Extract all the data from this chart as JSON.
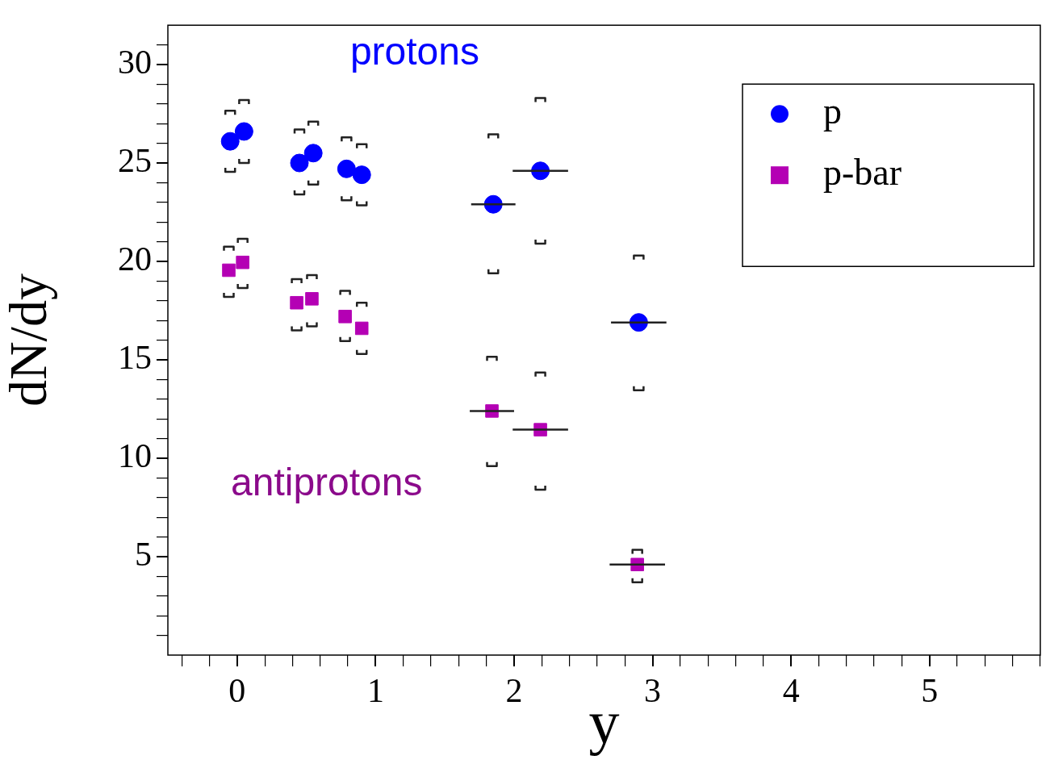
{
  "chart_data": {
    "type": "scatter",
    "xlabel": "y",
    "ylabel": "dN/dy",
    "xlim": [
      -0.5,
      5.8
    ],
    "xticks": [
      {
        "value": -0.4,
        "label": null
      },
      {
        "value": -0.2,
        "label": null
      },
      0,
      {
        "value": 0.2,
        "label": null
      },
      {
        "value": 0.4,
        "label": null
      },
      {
        "value": 0.6,
        "label": null
      },
      {
        "value": 0.8,
        "label": null
      },
      1,
      {
        "value": 1.2,
        "label": null
      },
      {
        "value": 1.4,
        "label": null
      },
      {
        "value": 1.6,
        "label": null
      },
      {
        "value": 1.8,
        "label": null
      },
      2,
      {
        "value": 2.2,
        "label": null
      },
      {
        "value": 2.4,
        "label": null
      },
      {
        "value": 2.6,
        "label": null
      },
      {
        "value": 2.8,
        "label": null
      },
      3,
      {
        "value": 3.2,
        "label": null
      },
      {
        "value": 3.4,
        "label": null
      },
      {
        "value": 3.6,
        "label": null
      },
      {
        "value": 3.8,
        "label": null
      },
      4,
      {
        "value": 4.2,
        "label": null
      },
      {
        "value": 4.4,
        "label": null
      },
      {
        "value": 4.6,
        "label": null
      },
      {
        "value": 4.8,
        "label": null
      },
      5,
      {
        "value": 5.2,
        "label": null
      },
      {
        "value": 5.4,
        "label": null
      },
      {
        "value": 5.6,
        "label": null
      },
      {
        "value": 5.8,
        "label": null
      }
    ],
    "ylim": [
      0,
      32
    ],
    "yticks": [
      {
        "value": 1,
        "label": null
      },
      {
        "value": 2,
        "label": null
      },
      {
        "value": 3,
        "label": null
      },
      {
        "value": 4,
        "label": null
      },
      5,
      {
        "value": 6,
        "label": null
      },
      {
        "value": 7,
        "label": null
      },
      {
        "value": 8,
        "label": null
      },
      {
        "value": 9,
        "label": null
      },
      10,
      {
        "value": 11,
        "label": null
      },
      {
        "value": 12,
        "label": null
      },
      {
        "value": 13,
        "label": null
      },
      {
        "value": 14,
        "label": null
      },
      15,
      {
        "value": 16,
        "label": null
      },
      {
        "value": 17,
        "label": null
      },
      {
        "value": 18,
        "label": null
      },
      {
        "value": 19,
        "label": null
      },
      20,
      {
        "value": 21,
        "label": null
      },
      {
        "value": 22,
        "label": null
      },
      {
        "value": 23,
        "label": null
      },
      {
        "value": 24,
        "label": null
      },
      25,
      {
        "value": 26,
        "label": null
      },
      {
        "value": 27,
        "label": null
      },
      {
        "value": 28,
        "label": null
      },
      {
        "value": 29,
        "label": null
      },
      30,
      {
        "value": 31,
        "label": null
      }
    ],
    "grid": false,
    "legend": "top right",
    "annotations": [
      "protons",
      "antiprotons"
    ],
    "series": [
      {
        "name": "p",
        "color": "#0000ff",
        "marker": "circle",
        "x": [
          -0.05,
          0.05,
          0.45,
          0.55,
          0.79,
          0.9,
          1.85,
          2.19,
          2.9
        ],
        "values": [
          26.1,
          26.6,
          25.0,
          25.5,
          24.7,
          24.4,
          22.9,
          24.6,
          16.9
        ],
        "errors": [
          [
            24.55,
            27.65
          ],
          [
            25.0,
            28.2
          ],
          [
            23.4,
            26.7
          ],
          [
            23.9,
            27.1
          ],
          [
            23.1,
            26.3
          ],
          [
            22.85,
            25.95
          ],
          [
            19.4,
            26.45
          ],
          [
            20.9,
            28.3
          ],
          [
            13.45,
            20.3
          ]
        ],
        "xerrors": [
          null,
          null,
          null,
          null,
          null,
          null,
          0.16,
          0.2,
          0.2
        ]
      },
      {
        "name": "p-bar",
        "color": "#8b0a8b",
        "marker": "square",
        "x": [
          -0.06,
          0.04,
          0.43,
          0.54,
          0.78,
          0.9,
          1.84,
          2.19,
          2.89
        ],
        "values": [
          19.55,
          19.95,
          17.9,
          18.1,
          17.2,
          16.6,
          12.4,
          11.45,
          4.6
        ],
        "colors": [
          "#b400b4",
          "#b400b4",
          "#b400b4",
          "#b400b4",
          "#b400b4",
          "#b400b4",
          "#b400b4",
          "#b400b4",
          "#b400b4"
        ],
        "errors": [
          [
            18.2,
            20.75
          ],
          [
            18.65,
            21.15
          ],
          [
            16.5,
            19.1
          ],
          [
            16.7,
            19.3
          ],
          [
            15.95,
            18.5
          ],
          [
            15.3,
            17.9
          ],
          [
            9.6,
            15.15
          ],
          [
            8.4,
            14.35
          ],
          [
            3.7,
            5.35
          ]
        ],
        "xerrors": [
          null,
          null,
          null,
          null,
          null,
          null,
          0.16,
          0.2,
          0.2
        ]
      }
    ]
  }
}
